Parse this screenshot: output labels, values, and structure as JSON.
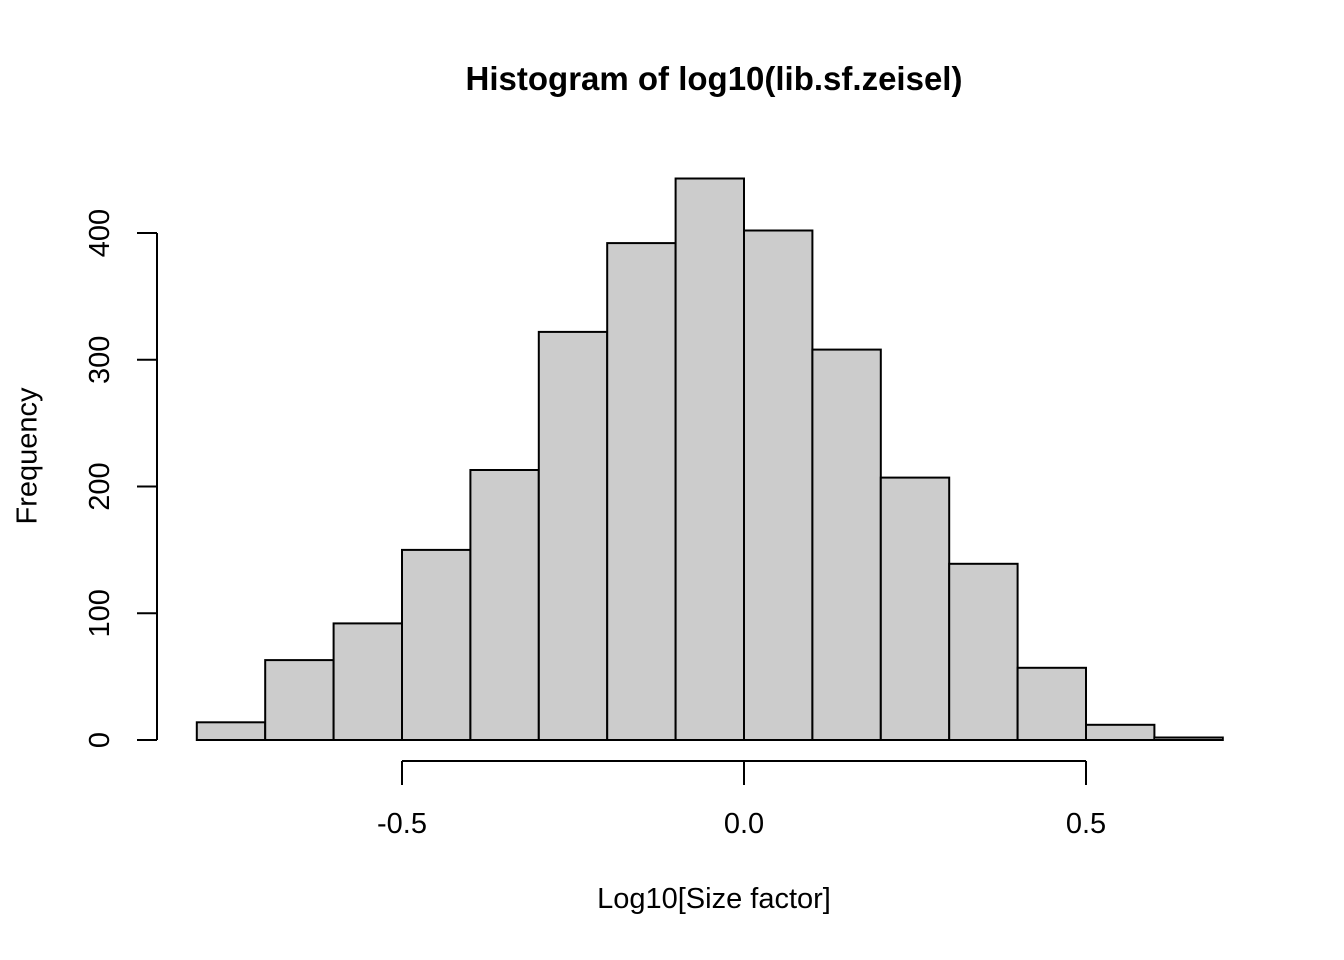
{
  "chart_data": {
    "type": "bar",
    "variant": "histogram",
    "title": "Histogram of log10(lib.sf.zeisel)",
    "xlabel": "Log10[Size factor]",
    "ylabel": "Frequency",
    "bin_start": -0.8,
    "bin_width": 0.1,
    "counts": [
      14,
      63,
      92,
      150,
      213,
      322,
      392,
      443,
      402,
      308,
      207,
      139,
      57,
      12,
      2
    ],
    "x_tick_values": [
      -0.5,
      0,
      0.5
    ],
    "x_tick_labels": [
      "-0.5",
      "0.0",
      "0.5"
    ],
    "y_tick_values": [
      0,
      100,
      200,
      300,
      400
    ],
    "y_tick_labels": [
      "0",
      "100",
      "200",
      "300",
      "400"
    ],
    "xlim": [
      -0.8,
      0.7
    ],
    "ylim": [
      0,
      443
    ],
    "grid": false,
    "legend_position": "none",
    "colors": {
      "bar_fill": "#cccccc",
      "bar_stroke": "#000000",
      "axis": "#000000",
      "text": "#000000",
      "background": "#ffffff"
    }
  }
}
